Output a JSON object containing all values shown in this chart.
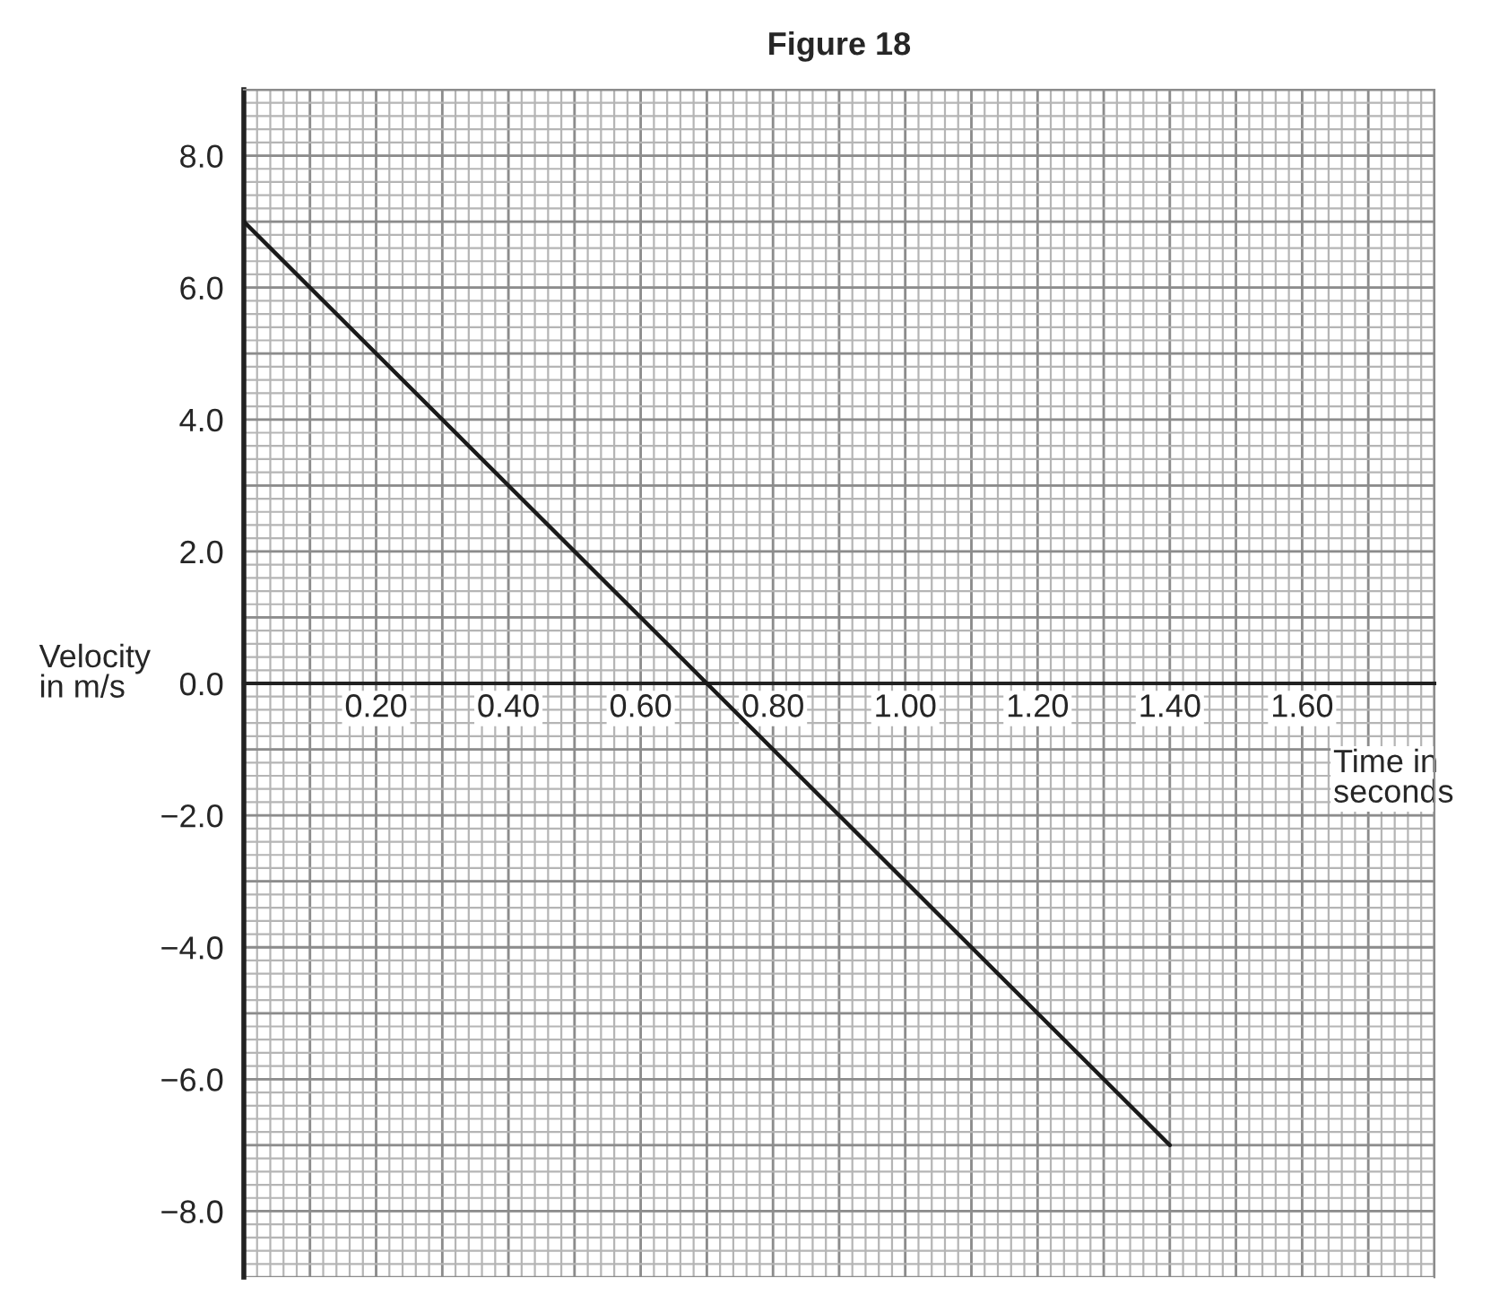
{
  "chart_data": {
    "type": "line",
    "title": "Figure 18",
    "xlabel": "Time in\nseconds",
    "ylabel": "Velocity\nin m/s",
    "x": [
      0,
      1.4
    ],
    "series": [
      {
        "color": "#1a1a1a",
        "values": [
          7.0,
          -7.0
        ]
      }
    ],
    "xlim": [
      0,
      1.8
    ],
    "ylim": [
      -9.0,
      9.0
    ],
    "xticks": [
      {
        "value": 0.2,
        "label": "0.20"
      },
      {
        "value": 0.4,
        "label": "0.40"
      },
      {
        "value": 0.6,
        "label": "0.60"
      },
      {
        "value": 0.8,
        "label": "0.80"
      },
      {
        "value": 1.0,
        "label": "1.00"
      },
      {
        "value": 1.2,
        "label": "1.20"
      },
      {
        "value": 1.4,
        "label": "1.40"
      },
      {
        "value": 1.6,
        "label": "1.60"
      }
    ],
    "yticks": [
      {
        "value": -8,
        "label": "−8.0"
      },
      {
        "value": -6,
        "label": "−6.0"
      },
      {
        "value": -4,
        "label": "−4.0"
      },
      {
        "value": -2,
        "label": "−2.0"
      },
      {
        "value": 0,
        "label": "0.0"
      },
      {
        "value": 2,
        "label": "2.0"
      },
      {
        "value": 4,
        "label": "4.0"
      },
      {
        "value": 6,
        "label": "6.0"
      },
      {
        "value": 8,
        "label": "8.0"
      }
    ],
    "grid": true,
    "marker": "none",
    "line_style": "solid"
  }
}
